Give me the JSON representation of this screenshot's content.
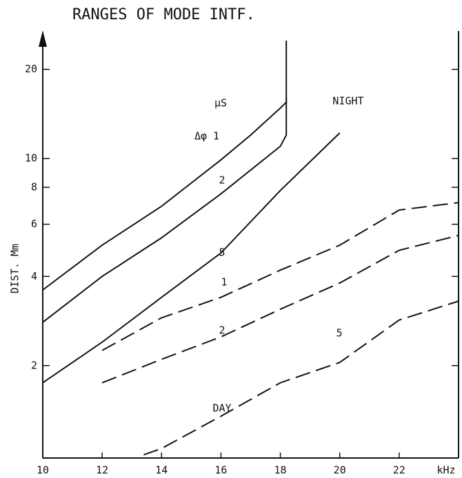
{
  "chart_data": {
    "type": "line",
    "title": "RANGES OF MODE INTF.",
    "y_label": "DIST. Mm",
    "log_y": true,
    "xlim": [
      10,
      24
    ],
    "ylim": [
      0.975,
      25
    ],
    "xticks": [
      10,
      12,
      14,
      16,
      18,
      20,
      22,
      {
        "value": 24,
        "label": "kHz"
      }
    ],
    "yticks": [
      2,
      4,
      6,
      8,
      10,
      20
    ],
    "annotations": [
      "μS",
      "Δφ 1",
      "2",
      "5",
      "NIGHT",
      "1",
      "2",
      "5",
      "DAY"
    ],
    "series": [
      {
        "color": "#111",
        "dash": false,
        "x": [
          10,
          12,
          14,
          16,
          17,
          18,
          18.2,
          18.2
        ],
        "values": [
          3.6,
          5.1,
          6.9,
          9.9,
          12,
          14.8,
          15.5,
          25
        ]
      },
      {
        "color": "#111",
        "dash": false,
        "x": [
          10,
          12,
          14,
          16,
          18,
          18.2,
          18.2
        ],
        "values": [
          2.8,
          4,
          5.4,
          7.6,
          11,
          12,
          16
        ]
      },
      {
        "color": "#111",
        "dash": false,
        "x": [
          10,
          12,
          14,
          16,
          18,
          20
        ],
        "values": [
          1.75,
          2.4,
          3.4,
          4.8,
          7.8,
          12.2
        ]
      },
      {
        "color": "#111",
        "dash": true,
        "x": [
          12,
          14,
          16,
          18,
          20,
          22,
          24
        ],
        "values": [
          2.25,
          2.9,
          3.4,
          4.2,
          5.1,
          6.7,
          7.1
        ]
      },
      {
        "color": "#111",
        "dash": true,
        "x": [
          12,
          14,
          16,
          18,
          20,
          22,
          24
        ],
        "values": [
          1.75,
          2.1,
          2.5,
          3.1,
          3.8,
          4.9,
          5.5
        ]
      },
      {
        "color": "#111",
        "dash": true,
        "x": [
          13.4,
          14,
          16,
          18,
          20,
          22,
          24
        ],
        "values": [
          1.0,
          1.05,
          1.35,
          1.75,
          2.05,
          2.85,
          3.3
        ]
      }
    ]
  }
}
